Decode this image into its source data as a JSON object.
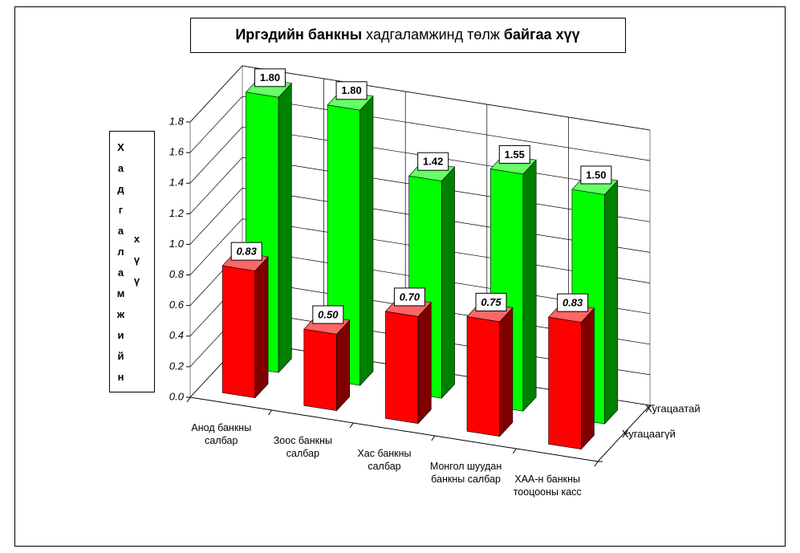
{
  "chart_data": {
    "type": "bar3d",
    "title": [
      "Иргэдийн банкны",
      " хадгаламжинд төлж ",
      "байгаа хүү"
    ],
    "title_bold": [
      true,
      false,
      true
    ],
    "ylabel": [
      "Хадгаламжийн",
      "хүү"
    ],
    "categories": [
      "Анод банкны салбар",
      "Зоос банкны салбар",
      "Хас  банкны салбар",
      "Монгол шуудан банкны салбар",
      "ХАА-н банкны тооцооны касс"
    ],
    "series": [
      {
        "name": "Хугацаатай",
        "color": "#00ff00",
        "values": [
          1.8,
          1.8,
          1.42,
          1.55,
          1.5
        ],
        "value_labels": [
          "1.80",
          "1.80",
          "1.42",
          "1.55",
          "1.50"
        ]
      },
      {
        "name": "Хугацаагүй",
        "color": "#ff0000",
        "values": [
          0.83,
          0.5,
          0.7,
          0.75,
          0.83
        ],
        "value_labels": [
          "0.83",
          "0.50",
          "0.70",
          "0.75",
          "0.83"
        ],
        "italic_labels": true
      }
    ],
    "ylim": [
      0,
      1.8
    ],
    "yticks": [
      {
        "value": 0,
        "label": "0.0"
      },
      0.2,
      0.4,
      0.6,
      0.8,
      {
        "value": 1,
        "label": "1.0"
      },
      1.2,
      1.4,
      1.6,
      1.8
    ],
    "grid": true
  }
}
